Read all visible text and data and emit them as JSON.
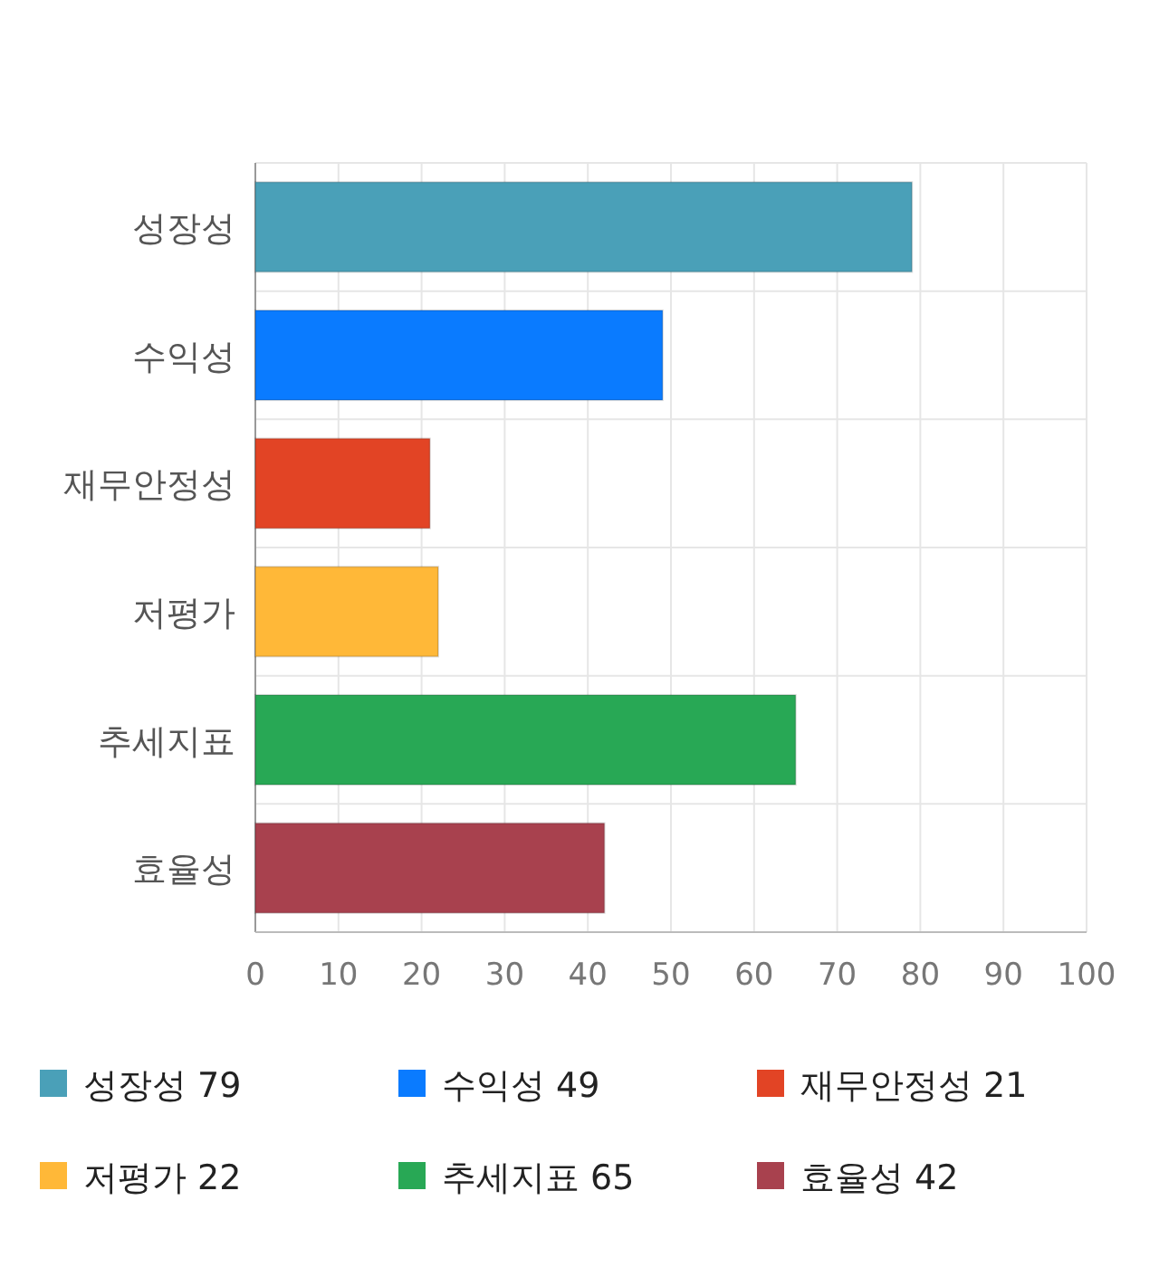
{
  "chart_data": {
    "type": "bar",
    "orientation": "horizontal",
    "categories": [
      "성장성",
      "수익성",
      "재무안정성",
      "저평가",
      "추세지표",
      "효율성"
    ],
    "series": [
      {
        "name": "성장성 79",
        "color": "#4aa0b8",
        "values": [
          79,
          null,
          null,
          null,
          null,
          null
        ]
      },
      {
        "name": "수익성 49",
        "color": "#0a7bff",
        "values": [
          null,
          49,
          null,
          null,
          null,
          null
        ]
      },
      {
        "name": "재무안정성 21",
        "color": "#e24425",
        "values": [
          null,
          null,
          21,
          null,
          null,
          null
        ]
      },
      {
        "name": "저평가 22",
        "color": "#ffb838",
        "values": [
          null,
          null,
          null,
          22,
          null,
          null
        ]
      },
      {
        "name": "추세지표 65",
        "color": "#28a855",
        "values": [
          null,
          null,
          null,
          null,
          65,
          null
        ]
      },
      {
        "name": "효율성 42",
        "color": "#a8414e",
        "values": [
          null,
          null,
          null,
          null,
          null,
          42
        ]
      }
    ],
    "xlim": [
      0,
      100
    ],
    "xticks": [
      0,
      10,
      20,
      30,
      40,
      50,
      60,
      70,
      80,
      90,
      100
    ],
    "grid": true,
    "legend": "bottom"
  }
}
